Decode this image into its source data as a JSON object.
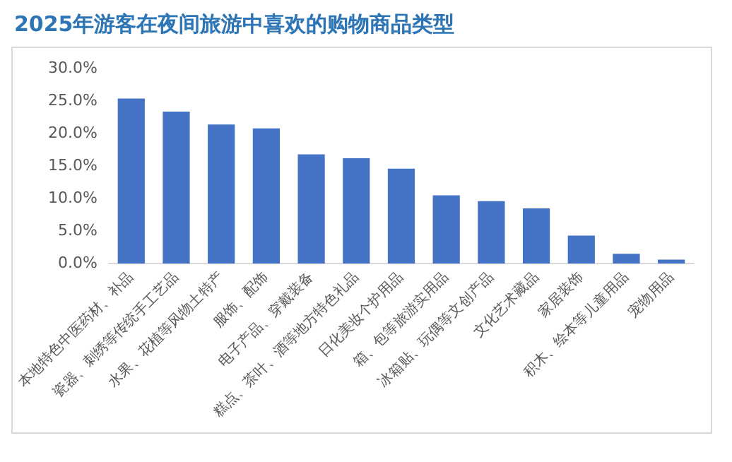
{
  "chart_data": {
    "type": "bar",
    "title": "2025年游客在夜间旅游中喜欢的购物商品类型",
    "categories": [
      "本地特色中医药材、补品",
      "瓷器、刺绣等传统手工艺品",
      "水果、花植等风物土特产",
      "服饰、配饰",
      "电子产品、穿戴装备",
      "糕点、茶叶、酒等地方特色礼品",
      "日化美妆个护用品",
      "箱、包等旅游实用品",
      "冰箱贴、玩偶等文创产品",
      "文化艺术藏品",
      "家居装饰",
      "积木、绘本等儿童用品",
      "宠物用品"
    ],
    "values": [
      25.4,
      23.4,
      21.4,
      20.8,
      16.8,
      16.2,
      14.6,
      10.5,
      9.6,
      8.5,
      4.3,
      1.5,
      0.6
    ],
    "color": "#4472c4",
    "ylim": [
      0,
      30
    ],
    "yticks": [
      {
        "value": 0,
        "label": "0.0%"
      },
      {
        "value": 5,
        "label": "5.0%"
      },
      {
        "value": 10,
        "label": "10.0%"
      },
      {
        "value": 15,
        "label": "15.0%"
      },
      {
        "value": 20,
        "label": "20.0%"
      },
      {
        "value": 25,
        "label": "25.0%"
      },
      {
        "value": 30,
        "label": "30.0%"
      }
    ],
    "grid": false,
    "legend": false
  }
}
